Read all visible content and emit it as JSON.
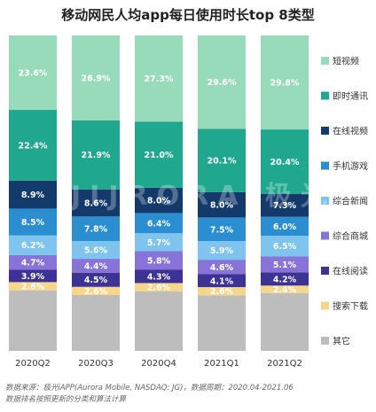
{
  "chart_data": {
    "type": "bar",
    "title": "移动网民人均app每日使用时长top 8类型",
    "stacked": true,
    "categories": [
      "2020Q2",
      "2020Q3",
      "2020Q4",
      "2021Q1",
      "2021Q2"
    ],
    "series": [
      {
        "name": "其它",
        "color": "#bdbdbd",
        "values": [
          null,
          null,
          null,
          null,
          null
        ],
        "labels": [
          "",
          "",
          "",
          "",
          ""
        ]
      },
      {
        "name": "搜索下载",
        "color": "#f7d58a",
        "values": [
          2.6,
          2.6,
          2.6,
          2.6,
          2.4
        ],
        "labels": [
          "2.6%",
          "2.6%",
          "2.6%",
          "2.6%",
          "2.4%"
        ]
      },
      {
        "name": "在线阅读",
        "color": "#3d3394",
        "values": [
          3.9,
          4.5,
          4.3,
          4.1,
          4.2
        ],
        "labels": [
          "3.9%",
          "4.5%",
          "4.3%",
          "4.1%",
          "4.2%"
        ]
      },
      {
        "name": "综合商城",
        "color": "#8874d8",
        "values": [
          4.7,
          4.4,
          5.8,
          4.6,
          5.1
        ],
        "labels": [
          "4.7%",
          "4.4%",
          "5.8%",
          "4.6%",
          "5.1%"
        ]
      },
      {
        "name": "综合新闻",
        "color": "#7fc4ee",
        "values": [
          6.2,
          5.6,
          5.7,
          5.9,
          6.5
        ],
        "labels": [
          "6.2%",
          "5.6%",
          "5.7%",
          "5.9%",
          "6.5%"
        ]
      },
      {
        "name": "手机游戏",
        "color": "#2b8ed0",
        "values": [
          8.5,
          7.8,
          6.4,
          7.5,
          6.0
        ],
        "labels": [
          "8.5%",
          "7.8%",
          "6.4%",
          "7.5%",
          "6.0%"
        ]
      },
      {
        "name": "在线视频",
        "color": "#133a6a",
        "values": [
          8.9,
          8.6,
          8.0,
          8.0,
          7.3
        ],
        "labels": [
          "8.9%",
          "8.6%",
          "8.0%",
          "8.0%",
          "7.3%"
        ]
      },
      {
        "name": "即时通讯",
        "color": "#20a88f",
        "values": [
          22.4,
          21.9,
          21.0,
          20.1,
          20.4
        ],
        "labels": [
          "22.4%",
          "21.9%",
          "21.0%",
          "20.1%",
          "20.4%"
        ]
      },
      {
        "name": "短视频",
        "color": "#98dbbb",
        "values": [
          23.6,
          26.9,
          27.3,
          29.6,
          29.8
        ],
        "labels": [
          "23.6%",
          "26.9%",
          "27.3%",
          "29.6%",
          "29.8%"
        ]
      }
    ],
    "legend_order": [
      "短视频",
      "即时通讯",
      "在线视频",
      "手机游戏",
      "综合新闻",
      "综合商城",
      "在线阅读",
      "搜索下载",
      "其它"
    ],
    "legend_position": "right",
    "ylim": [
      0,
      100
    ],
    "grid": false
  },
  "watermark": "JIJRORA 极光",
  "footer": {
    "line1": "数据来源：极光iAPP(Aurora Mobile, NASDAQ: JG)，数据周期：2020.04-2021.06",
    "line2": "数据排名按照更新的分类和算法计算"
  }
}
